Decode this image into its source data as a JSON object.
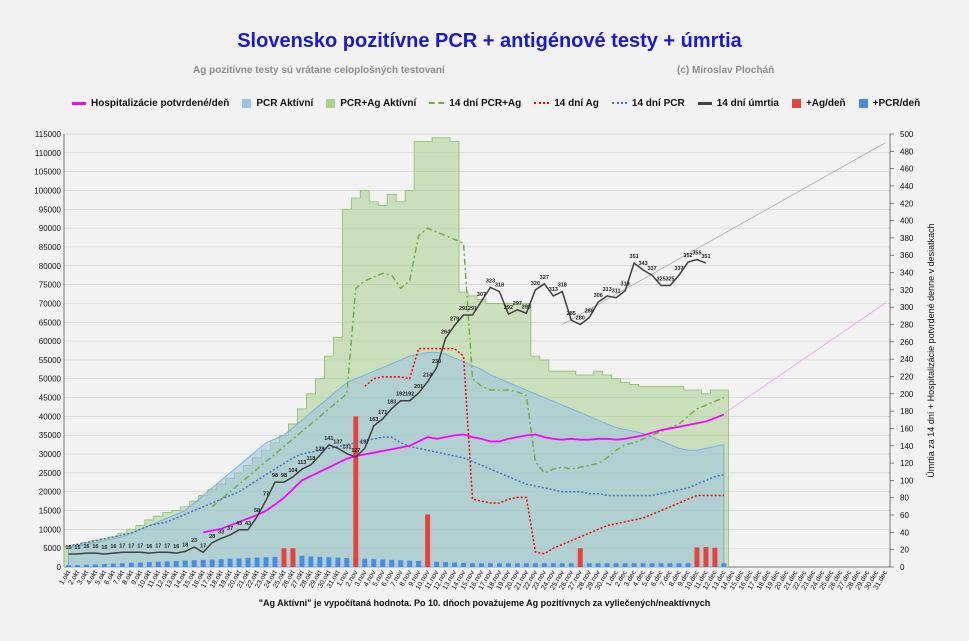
{
  "title": "Slovensko  pozitívne PCR + antigénové testy + úmrtia",
  "subtitle": "Ag pozitívne testy sú vrátane celoplošných testovaní",
  "copyright": "(c) Miroslav Plocháň",
  "footnote": "\"Ag Aktívni\"  je vypočítaná hodnota.  Po 10. dňoch považujeme  Ag pozitívnych  za vyliečených/neaktívnych",
  "colors": {
    "hosp": "#ff00ff",
    "pcr_active": "#9cc3e5",
    "total_active": "#a9d08e",
    "ma_total": "#70ad47",
    "ma_ag": "#ff0000",
    "ma_pcr": "#4472c4",
    "deaths": "#404040",
    "ag_day": "#e8423a",
    "pcr_day": "#4a8be6"
  },
  "legend": [
    {
      "label": "Hospitalizácie potvrdené/deň",
      "kind": "line",
      "color": "#ff00ff"
    },
    {
      "label": "PCR Aktívní",
      "kind": "box",
      "color": "#9cc3e5"
    },
    {
      "label": "PCR+Ag Aktívní",
      "kind": "box",
      "color": "#a9d08e"
    },
    {
      "label": "14 dní PCR+Ag",
      "kind": "dash",
      "color": "#70ad47"
    },
    {
      "label": "14 dní Ag",
      "kind": "dot",
      "color": "#ff0000"
    },
    {
      "label": "14 dní PCR",
      "kind": "dot",
      "color": "#4472c4"
    },
    {
      "label": "14 dní úmrtia",
      "kind": "line",
      "color": "#404040"
    },
    {
      "label": "+Ag/deň",
      "kind": "box",
      "color": "#e8423a"
    },
    {
      "label": "+PCR/deň",
      "kind": "box",
      "color": "#4a8be6"
    }
  ],
  "chart_data": {
    "type": "line",
    "x_categories": [
      "1.okt",
      "2.okt",
      "3.okt",
      "4.okt",
      "5.okt",
      "6.okt",
      "7.okt",
      "8.okt",
      "9.okt",
      "10.okt",
      "11.okt",
      "12.okt",
      "13.okt",
      "14.okt",
      "15.okt",
      "16.okt",
      "17.okt",
      "18.okt",
      "19.okt",
      "20.okt",
      "21.okt",
      "22.okt",
      "23.okt",
      "24.okt",
      "25.okt",
      "26.okt",
      "27.okt",
      "28.okt",
      "29.okt",
      "30.okt",
      "31.okt",
      "1.nov",
      "2.nov",
      "3.nov",
      "4.nov",
      "5.nov",
      "6.nov",
      "7.nov",
      "8.nov",
      "9.nov",
      "10.nov",
      "11.nov",
      "12.nov",
      "13.nov",
      "14.nov",
      "15.nov",
      "16.nov",
      "17.nov",
      "18.nov",
      "19.nov",
      "20.nov",
      "21.nov",
      "22.nov",
      "23.nov",
      "24.nov",
      "25.nov",
      "26.nov",
      "27.nov",
      "28.nov",
      "29.nov",
      "30.nov",
      "1.dec",
      "2.dec",
      "3.dec",
      "4.dec",
      "5.dec",
      "6.dec",
      "7.dec",
      "8.dec",
      "9.dec",
      "10.dec",
      "11.dec",
      "12.dec",
      "13.dec",
      "14.dec",
      "15.dec",
      "16.dec",
      "17.dec",
      "18.dec",
      "19.dec",
      "20.dec",
      "21.dec",
      "22.dec",
      "23.dec",
      "24.dec",
      "25.dec",
      "26.dec",
      "27.dec",
      "28.dec",
      "29.dec",
      "30.dec",
      "31.dec"
    ],
    "y_left": {
      "min": 0,
      "max": 115000,
      "step": 5000
    },
    "y_right": {
      "min": 0,
      "max": 500,
      "step": 20,
      "label": "Úmrtia za 14 dní + Hospitalizácie potvrdené  denne v desiatkach"
    },
    "series": [
      {
        "name": "PCR+Ag Aktívní",
        "kind": "area",
        "axis": "left",
        "values": [
          5500,
          6000,
          6500,
          7000,
          7500,
          8000,
          9000,
          10000,
          11000,
          12500,
          13500,
          14500,
          15000,
          16000,
          17500,
          19000,
          20500,
          22000,
          23500,
          25000,
          27000,
          29000,
          31000,
          33000,
          35000,
          38000,
          42000,
          46000,
          50000,
          56000,
          61000,
          95000,
          98000,
          100000,
          97000,
          96000,
          99000,
          97000,
          100000,
          113000,
          113000,
          114000,
          114000,
          113000,
          73000,
          72000,
          71000,
          70000,
          70000,
          70000,
          70000,
          70000,
          56000,
          55000,
          52000,
          52000,
          52000,
          51000,
          51000,
          52000,
          51000,
          50000,
          49000,
          48500,
          48000,
          48000,
          48000,
          48000,
          48000,
          47000,
          47000,
          46000,
          47000,
          47000
        ]
      },
      {
        "name": "PCR Aktívní",
        "kind": "area",
        "axis": "left",
        "values": [
          5000,
          5500,
          6000,
          6500,
          7000,
          7500,
          8000,
          9000,
          10000,
          11000,
          12000,
          13000,
          14000,
          15000,
          17000,
          19000,
          21000,
          23000,
          25000,
          27000,
          29000,
          31000,
          33000,
          34000,
          35000,
          37000,
          39000,
          41000,
          43000,
          45000,
          47000,
          49000,
          50000,
          51000,
          52000,
          53000,
          54000,
          55000,
          56000,
          56500,
          57000,
          57000,
          56500,
          55500,
          54500,
          53500,
          52500,
          51000,
          50000,
          49000,
          48000,
          47000,
          46000,
          45000,
          44000,
          43000,
          42000,
          41000,
          40000,
          39000,
          38000,
          37000,
          36500,
          36000,
          35500,
          34500,
          33500,
          32500,
          31500,
          31000,
          31000,
          31500,
          32000,
          32500
        ]
      },
      {
        "name": "14 dní PCR+Ag",
        "kind": "line",
        "axis": "left",
        "values": [
          null,
          null,
          null,
          null,
          null,
          null,
          null,
          null,
          null,
          null,
          null,
          null,
          null,
          null,
          null,
          null,
          16000,
          18000,
          20000,
          22000,
          24000,
          26000,
          28000,
          30000,
          32000,
          34000,
          36000,
          38000,
          40000,
          42000,
          44000,
          46000,
          74000,
          76000,
          77000,
          78000,
          77500,
          74000,
          76000,
          88000,
          90000,
          89000,
          88000,
          87000,
          86000,
          50000,
          48000,
          47000,
          47000,
          47000,
          46500,
          45500,
          28000,
          25000,
          26000,
          26500,
          26000,
          26500,
          27000,
          27500,
          29000,
          31000,
          32500,
          33000,
          34000,
          35000,
          36000,
          37000,
          38000,
          40000,
          42000,
          43000,
          44000,
          45000
        ]
      },
      {
        "name": "14 dní Ag",
        "kind": "line",
        "axis": "left",
        "values": [
          null,
          null,
          null,
          null,
          null,
          null,
          null,
          null,
          null,
          null,
          null,
          null,
          null,
          null,
          null,
          null,
          null,
          null,
          null,
          null,
          null,
          null,
          null,
          null,
          null,
          null,
          null,
          null,
          null,
          null,
          null,
          null,
          null,
          48000,
          50000,
          50500,
          50500,
          50500,
          50000,
          58000,
          58000,
          58000,
          58000,
          58000,
          56000,
          18000,
          17500,
          17000,
          17000,
          18000,
          18500,
          18500,
          4000,
          3500,
          5000,
          6000,
          7000,
          8000,
          9000,
          10000,
          11000,
          11500,
          12000,
          12500,
          13000,
          14000,
          15000,
          16000,
          17000,
          18000,
          19000,
          19000,
          19000,
          19000
        ]
      },
      {
        "name": "14 dní PCR",
        "kind": "line",
        "axis": "left",
        "values": [
          5500,
          6000,
          6500,
          7000,
          7500,
          8000,
          8500,
          9000,
          10000,
          11000,
          11500,
          12000,
          13000,
          14000,
          15000,
          16000,
          17000,
          18000,
          19000,
          20000,
          21500,
          23000,
          24500,
          26000,
          27500,
          29000,
          30000,
          30500,
          31000,
          31500,
          32000,
          32500,
          33000,
          33500,
          34000,
          34500,
          34500,
          33000,
          32000,
          31500,
          31000,
          30500,
          30000,
          29500,
          29000,
          28000,
          27000,
          26000,
          25000,
          24000,
          23000,
          22000,
          21500,
          21000,
          20500,
          20000,
          20000,
          20000,
          19500,
          19500,
          19000,
          19000,
          19000,
          19000,
          19000,
          19000,
          19500,
          20000,
          20500,
          21000,
          22000,
          23000,
          24000,
          24500
        ]
      },
      {
        "name": "Hospitalizácie potvrdené/deň",
        "kind": "line",
        "axis": "right",
        "values": [
          null,
          null,
          null,
          null,
          null,
          null,
          null,
          null,
          null,
          null,
          null,
          null,
          null,
          null,
          null,
          40,
          42,
          44,
          48,
          52,
          56,
          60,
          65,
          72,
          80,
          90,
          100,
          105,
          110,
          115,
          120,
          125,
          128,
          130,
          132,
          134,
          136,
          138,
          140,
          145,
          150,
          148,
          150,
          152,
          153,
          150,
          148,
          145,
          145,
          148,
          150,
          152,
          153,
          150,
          148,
          147,
          148,
          147,
          147,
          148,
          148,
          147,
          148,
          150,
          152,
          155,
          158,
          160,
          162,
          164,
          166,
          168,
          172,
          176
        ]
      },
      {
        "name": "14 dní úmrtia",
        "kind": "line",
        "axis": "right",
        "values": [
          15,
          15,
          16,
          16,
          15,
          16,
          17,
          17,
          17,
          16,
          17,
          17,
          16,
          18,
          23,
          17,
          28,
          33,
          37,
          43,
          43,
          58,
          77,
          98,
          98,
          104,
          113,
          118,
          129,
          141,
          137,
          131,
          127,
          137,
          163,
          171,
          183,
          192,
          192,
          201,
          214,
          230,
          264,
          279,
          291,
          291,
          307,
          323,
          318,
          292,
          297,
          293,
          320,
          327,
          313,
          318,
          285,
          280,
          288,
          306,
          313,
          311,
          319,
          351,
          343,
          337,
          325,
          325,
          337,
          352,
          355,
          351
        ]
      },
      {
        "name": "+Ag/deň",
        "kind": "bar",
        "axis": "left",
        "values": [
          0,
          0,
          0,
          0,
          0,
          0,
          0,
          0,
          0,
          0,
          0,
          0,
          0,
          0,
          0,
          0,
          0,
          0,
          0,
          0,
          0,
          0,
          0,
          0,
          4997,
          5000,
          0,
          0,
          0,
          0,
          0,
          0,
          40000,
          0,
          0,
          0,
          0,
          0,
          0,
          0,
          13947,
          0,
          0,
          0,
          0,
          0,
          0,
          0,
          0,
          0,
          0,
          0,
          0,
          0,
          0,
          0,
          0,
          5000,
          0,
          0,
          0,
          0,
          0,
          0,
          0,
          0,
          0,
          0,
          0,
          0,
          5200,
          5300,
          5100
        ]
      },
      {
        "name": "+PCR/deň",
        "kind": "bar",
        "axis": "left",
        "values": [
          500,
          500,
          600,
          700,
          800,
          900,
          1000,
          1100,
          1200,
          1300,
          1400,
          1500,
          1600,
          1700,
          1800,
          1900,
          2000,
          2100,
          2200,
          2300,
          2400,
          2500,
          2600,
          2700,
          2800,
          2900,
          3000,
          2800,
          2700,
          2600,
          2500,
          2400,
          2300,
          2200,
          2100,
          2000,
          1900,
          1800,
          1700,
          1600,
          1500,
          1400,
          1300,
          1200,
          1100,
          1000,
          1000,
          1000,
          1000,
          1000,
          1000,
          1000,
          1000,
          1000,
          1000,
          1000,
          1000,
          1000,
          1000,
          1000,
          1000,
          1000,
          1000,
          1000,
          1000,
          1000,
          1000,
          1000,
          1000,
          1000,
          1000,
          1000,
          1000,
          1000
        ]
      }
    ],
    "trend_lines": [
      {
        "name": "deaths-trend",
        "axis": "right",
        "from": [
          55,
          280
        ],
        "to": [
          91,
          490
        ]
      },
      {
        "name": "hosp-trend",
        "axis": "right",
        "from": [
          73,
          177
        ],
        "to": [
          91,
          305
        ]
      }
    ]
  }
}
